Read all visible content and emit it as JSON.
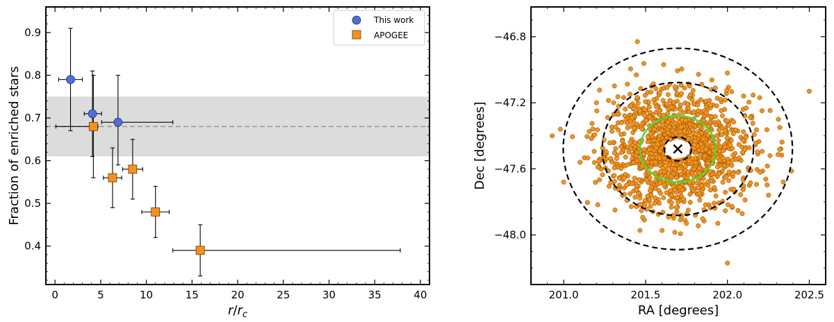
{
  "chart_data": [
    {
      "type": "scatter",
      "panel": "left",
      "xlabel_main": "r",
      "xlabel_sub": "r",
      "xlabel_sub_index": "c",
      "ylabel": "Fraction of enriched stars",
      "xlim": [
        -1,
        41
      ],
      "ylim": [
        0.31,
        0.96
      ],
      "xticks": [
        0,
        5,
        10,
        15,
        20,
        25,
        30,
        35,
        40
      ],
      "xtick_labels": [
        "0",
        "5",
        "10",
        "15",
        "20",
        "25",
        "30",
        "35",
        "40"
      ],
      "yticks": [
        0.4,
        0.5,
        0.6,
        0.7,
        0.8,
        0.9
      ],
      "ytick_labels": [
        "0.4",
        "0.5",
        "0.6",
        "0.7",
        "0.8",
        "0.9"
      ],
      "band": {
        "y_low": 0.61,
        "y_high": 0.75,
        "color": "#dcdcdc"
      },
      "reference_line": {
        "y": 0.68,
        "color": "#999999"
      },
      "legend_position": "top-right",
      "series": [
        {
          "name": "This work",
          "marker": "circle",
          "color": "#4f6fd8",
          "points": [
            {
              "x": 1.7,
              "y": 0.79,
              "xerr": [
                1.3,
                1.3
              ],
              "yerr": [
                0.12,
                0.12
              ]
            },
            {
              "x": 4.1,
              "y": 0.71,
              "xerr": [
                0.9,
                1.0
              ],
              "yerr": [
                0.1,
                0.1
              ]
            },
            {
              "x": 6.9,
              "y": 0.69,
              "xerr": [
                1.8,
                6.0
              ],
              "yerr": [
                0.1,
                0.11
              ]
            }
          ]
        },
        {
          "name": "APOGEE",
          "marker": "square",
          "color": "#f4921a",
          "points": [
            {
              "x": 4.2,
              "y": 0.68,
              "xerr": [
                4.1,
                0.5
              ],
              "yerr": [
                0.12,
                0.12
              ]
            },
            {
              "x": 6.3,
              "y": 0.56,
              "xerr": [
                1.0,
                1.0
              ],
              "yerr": [
                0.07,
                0.07
              ]
            },
            {
              "x": 8.5,
              "y": 0.58,
              "xerr": [
                1.1,
                1.1
              ],
              "yerr": [
                0.07,
                0.07
              ]
            },
            {
              "x": 11.0,
              "y": 0.48,
              "xerr": [
                1.5,
                1.5
              ],
              "yerr": [
                0.06,
                0.06
              ]
            },
            {
              "x": 15.9,
              "y": 0.39,
              "xerr": [
                3.0,
                21.9
              ],
              "yerr": [
                0.06,
                0.06
              ]
            }
          ]
        }
      ]
    },
    {
      "type": "scatter",
      "panel": "right",
      "xlabel": "RA [degrees]",
      "ylabel": "Dec [degrees]",
      "xlim": [
        200.8,
        202.6
      ],
      "ylim": [
        -48.3,
        -46.62
      ],
      "xticks": [
        201.0,
        201.5,
        202.0,
        202.5
      ],
      "xtick_labels": [
        "201.0",
        "201.5",
        "202.0",
        "202.5"
      ],
      "yticks": [
        -46.8,
        -47.2,
        -47.6,
        -48.0
      ],
      "ytick_labels": [
        "−46.8",
        "−47.2",
        "−47.6",
        "−48.0"
      ],
      "center": {
        "ra": 201.697,
        "dec": -47.4795,
        "marker": "x"
      },
      "point_color": "#f4921a",
      "circles": [
        {
          "radius_deg": 0.083,
          "style": "dashed",
          "color": "#000000"
        },
        {
          "radius_deg": 0.231,
          "style": "solid",
          "color": "#44dd33"
        },
        {
          "radius_deg": 0.462,
          "style": "dashed",
          "color": "#000000"
        },
        {
          "radius_deg": 0.7,
          "style": "dashed",
          "color": "#000000"
        }
      ],
      "outlier_points": [
        {
          "ra": 201.45,
          "dec": -46.83
        },
        {
          "ra": 202.0,
          "dec": -47.02
        },
        {
          "ra": 202.5,
          "dec": -47.13
        },
        {
          "ra": 202.32,
          "dec": -47.35
        },
        {
          "ra": 200.93,
          "dec": -47.4
        },
        {
          "ra": 200.98,
          "dec": -47.36
        },
        {
          "ra": 201.0,
          "dec": -47.68
        },
        {
          "ra": 202.0,
          "dec": -48.17
        },
        {
          "ra": 202.2,
          "dec": -47.62
        },
        {
          "ra": 201.2,
          "dec": -47.2
        },
        {
          "ra": 202.26,
          "dec": -47.52
        },
        {
          "ra": 201.1,
          "dec": -47.56
        }
      ],
      "cluster_points_count": 1300
    }
  ],
  "legend": {
    "items": [
      {
        "label": "This work",
        "marker": "circle",
        "color": "#4f6fd8"
      },
      {
        "label": "APOGEE",
        "marker": "square",
        "color": "#f4921a"
      }
    ]
  }
}
